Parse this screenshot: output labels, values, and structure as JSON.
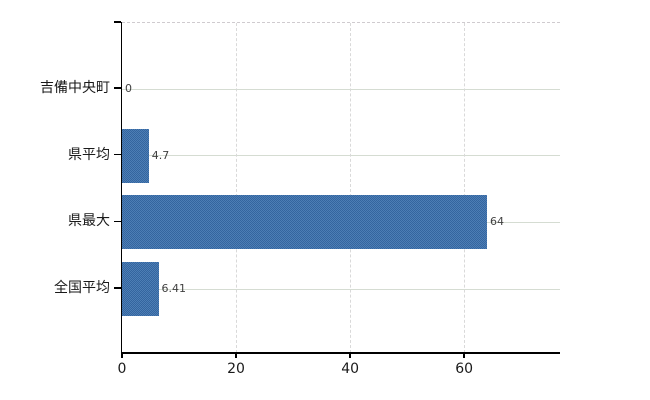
{
  "chart_data": {
    "type": "bar",
    "orientation": "horizontal",
    "title": "",
    "xlabel": "",
    "ylabel": "",
    "categories": [
      "吉備中央町",
      "県平均",
      "県最大",
      "全国平均"
    ],
    "values": [
      0,
      4.7,
      64,
      6.41
    ],
    "value_labels": [
      "0",
      "4.7",
      "64",
      "6.41"
    ],
    "xticks": [
      0,
      20,
      40,
      60
    ],
    "xtick_labels": [
      "0",
      "20",
      "40",
      "60"
    ],
    "xlim": [
      0,
      76.8
    ],
    "grid": "on",
    "legend": "none",
    "colors": {
      "bar": "#3f6fa9",
      "bar_dither_dark": "#34659f",
      "bar_dither_light": "#4d7eb5",
      "h_gridline": "#d5dcd2",
      "v_gridline": "#d9d9d9",
      "plot_top_border": "#cfcbcf",
      "axis": "#000000",
      "value_label": "#404040",
      "tick_label": "#1a1a1a",
      "background": "#ffffff"
    }
  }
}
